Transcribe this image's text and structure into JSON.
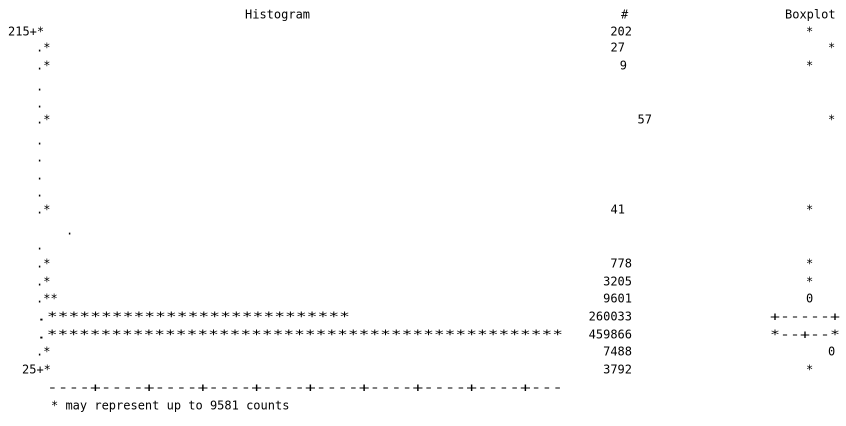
{
  "header": {
    "histogram": "Histogram",
    "count": "#",
    "boxplot": "Boxplot"
  },
  "rows": [
    {
      "left": "215+*",
      "count": 202,
      "box": "*"
    },
    {
      "left": ".*",
      "count": 27,
      "box": "*"
    },
    {
      "left": ".*",
      "count": 9,
      "box": "*"
    },
    {
      "left": "."
    },
    {
      "left": "."
    },
    {
      "left": ".*",
      "count": 57,
      "box": "*"
    },
    {
      "left": "."
    },
    {
      "left": "."
    },
    {
      "left": "."
    },
    {
      "left": "."
    },
    {
      "left": ".*",
      "count": 41,
      "box": "*"
    },
    {
      "left": "."
    },
    {
      "left": "."
    },
    {
      "left": ".*",
      "count": 778,
      "box": "*"
    },
    {
      "left": ".*",
      "count": 3205,
      "box": "*"
    },
    {
      "left": ".**",
      "count": 9601,
      "box": "0"
    },
    {
      "left": ".****************************",
      "count": 260033,
      "box": "+-----+"
    },
    {
      "left": ".************************************************",
      "count": 459866,
      "box": "*--+--*"
    },
    {
      "left": ".*",
      "count": 7488,
      "box": "0"
    },
    {
      "left": "25+*",
      "count": 3792,
      "box": "*"
    }
  ],
  "axis": "----+----+----+----+----+----+----+----+----+---",
  "note": "* may represent up to 9581 counts"
}
